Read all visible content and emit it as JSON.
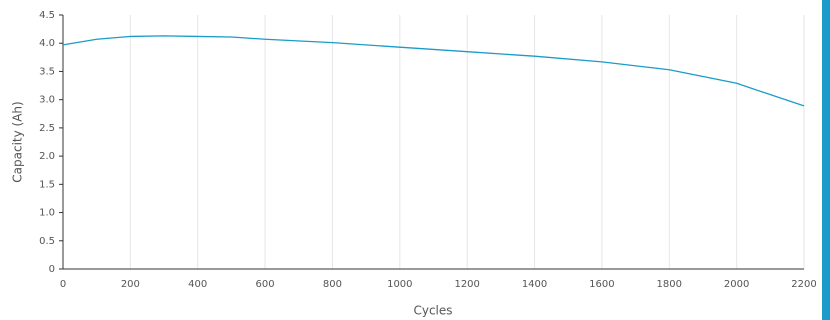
{
  "chart_data": {
    "type": "line",
    "x_label": "Cycles",
    "y_label": "Capacity (Ah)",
    "x": [
      0,
      100,
      200,
      300,
      400,
      500,
      600,
      800,
      1000,
      1200,
      1400,
      1600,
      1800,
      2000,
      2200
    ],
    "series": [
      {
        "color": "#1a9bc9",
        "values": [
          3.97,
          4.07,
          4.12,
          4.13,
          4.12,
          4.11,
          4.07,
          4.01,
          3.93,
          3.85,
          3.77,
          3.67,
          3.53,
          3.29,
          2.89
        ]
      }
    ],
    "xlim": [
      0,
      2200
    ],
    "xticks": [
      0,
      200,
      400,
      600,
      800,
      1000,
      1200,
      1400,
      1600,
      1800,
      2000,
      2200
    ],
    "ylim": [
      0,
      4.5
    ],
    "yticks": [
      0,
      0.5,
      {
        "value": 1,
        "label": "1.0"
      },
      1.5,
      {
        "value": 2,
        "label": "2.0"
      },
      2.5,
      {
        "value": 3,
        "label": "3.0"
      },
      3.5,
      {
        "value": 4,
        "label": "4.0"
      },
      4.5
    ],
    "grid": "x"
  }
}
